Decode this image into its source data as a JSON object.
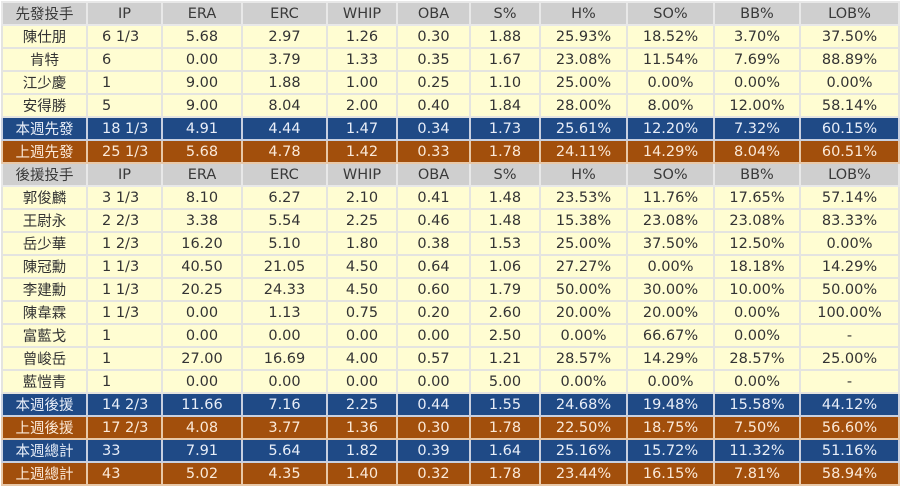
{
  "columns": [
    "IP",
    "ERA",
    "ERC",
    "WHIP",
    "OBA",
    "S%",
    "H%",
    "SO%",
    "BB%",
    "LOB%"
  ],
  "colors": {
    "header": "#cfcfcf",
    "row": "#fffdd2",
    "this_week": "#1f4a86",
    "last_week": "#a24f0c"
  },
  "sections": [
    {
      "header": "先發投手",
      "rows": [
        {
          "type": "row",
          "cells": [
            "陳仕朋",
            "6 1/3",
            "5.68",
            "2.97",
            "1.26",
            "0.30",
            "1.88",
            "25.93%",
            "18.52%",
            "3.70%",
            "37.50%"
          ]
        },
        {
          "type": "row",
          "cells": [
            "肯特",
            "6",
            "0.00",
            "3.79",
            "1.33",
            "0.35",
            "1.67",
            "23.08%",
            "11.54%",
            "7.69%",
            "88.89%"
          ]
        },
        {
          "type": "row",
          "cells": [
            "江少慶",
            "1",
            "9.00",
            "1.88",
            "1.00",
            "0.25",
            "1.10",
            "25.00%",
            "0.00%",
            "0.00%",
            "0.00%"
          ]
        },
        {
          "type": "row",
          "cells": [
            "安得勝",
            "5",
            "9.00",
            "8.04",
            "2.00",
            "0.40",
            "1.84",
            "28.00%",
            "8.00%",
            "12.00%",
            "58.14%"
          ]
        },
        {
          "type": "blue",
          "cells": [
            "本週先發",
            "18 1/3",
            "4.91",
            "4.44",
            "1.47",
            "0.34",
            "1.73",
            "25.61%",
            "12.20%",
            "7.32%",
            "60.15%"
          ]
        },
        {
          "type": "orange",
          "cells": [
            "上週先發",
            "25 1/3",
            "5.68",
            "4.78",
            "1.42",
            "0.33",
            "1.78",
            "24.11%",
            "14.29%",
            "8.04%",
            "60.51%"
          ]
        }
      ]
    },
    {
      "header": "後援投手",
      "rows": [
        {
          "type": "row",
          "cells": [
            "郭俊麟",
            "3 1/3",
            "8.10",
            "6.27",
            "2.10",
            "0.41",
            "1.48",
            "23.53%",
            "11.76%",
            "17.65%",
            "57.14%"
          ]
        },
        {
          "type": "row",
          "cells": [
            "王尉永",
            "2 2/3",
            "3.38",
            "5.54",
            "2.25",
            "0.46",
            "1.48",
            "15.38%",
            "23.08%",
            "23.08%",
            "83.33%"
          ]
        },
        {
          "type": "row",
          "cells": [
            "岳少華",
            "1 2/3",
            "16.20",
            "5.10",
            "1.80",
            "0.38",
            "1.53",
            "25.00%",
            "37.50%",
            "12.50%",
            "0.00%"
          ]
        },
        {
          "type": "row",
          "cells": [
            "陳冠勳",
            "1 1/3",
            "40.50",
            "21.05",
            "4.50",
            "0.64",
            "1.06",
            "27.27%",
            "0.00%",
            "18.18%",
            "14.29%"
          ]
        },
        {
          "type": "row",
          "cells": [
            "李建勳",
            "1 1/3",
            "20.25",
            "24.33",
            "4.50",
            "0.60",
            "1.79",
            "50.00%",
            "30.00%",
            "10.00%",
            "50.00%"
          ]
        },
        {
          "type": "row",
          "cells": [
            "陳韋霖",
            "1 1/3",
            "0.00",
            "1.13",
            "0.75",
            "0.20",
            "2.60",
            "20.00%",
            "20.00%",
            "0.00%",
            "100.00%"
          ]
        },
        {
          "type": "row",
          "cells": [
            "富藍戈",
            "1",
            "0.00",
            "0.00",
            "0.00",
            "0.00",
            "2.50",
            "0.00%",
            "66.67%",
            "0.00%",
            "-"
          ]
        },
        {
          "type": "row",
          "cells": [
            "曾峻岳",
            "1",
            "27.00",
            "16.69",
            "4.00",
            "0.57",
            "1.21",
            "28.57%",
            "14.29%",
            "28.57%",
            "25.00%"
          ]
        },
        {
          "type": "row",
          "cells": [
            "藍愷青",
            "1",
            "0.00",
            "0.00",
            "0.00",
            "0.00",
            "5.00",
            "0.00%",
            "0.00%",
            "0.00%",
            "-"
          ]
        },
        {
          "type": "blue",
          "cells": [
            "本週後援",
            "14 2/3",
            "11.66",
            "7.16",
            "2.25",
            "0.44",
            "1.55",
            "24.68%",
            "19.48%",
            "15.58%",
            "44.12%"
          ]
        },
        {
          "type": "orange",
          "cells": [
            "上週後援",
            "17 2/3",
            "4.08",
            "3.77",
            "1.36",
            "0.30",
            "1.78",
            "22.50%",
            "18.75%",
            "7.50%",
            "56.60%"
          ]
        },
        {
          "type": "blue",
          "cells": [
            "本週總計",
            "33",
            "7.91",
            "5.64",
            "1.82",
            "0.39",
            "1.64",
            "25.16%",
            "15.72%",
            "11.32%",
            "51.16%"
          ]
        },
        {
          "type": "orange",
          "cells": [
            "上週總計",
            "43",
            "5.02",
            "4.35",
            "1.40",
            "0.32",
            "1.78",
            "23.44%",
            "16.15%",
            "7.81%",
            "58.94%"
          ]
        }
      ]
    }
  ]
}
